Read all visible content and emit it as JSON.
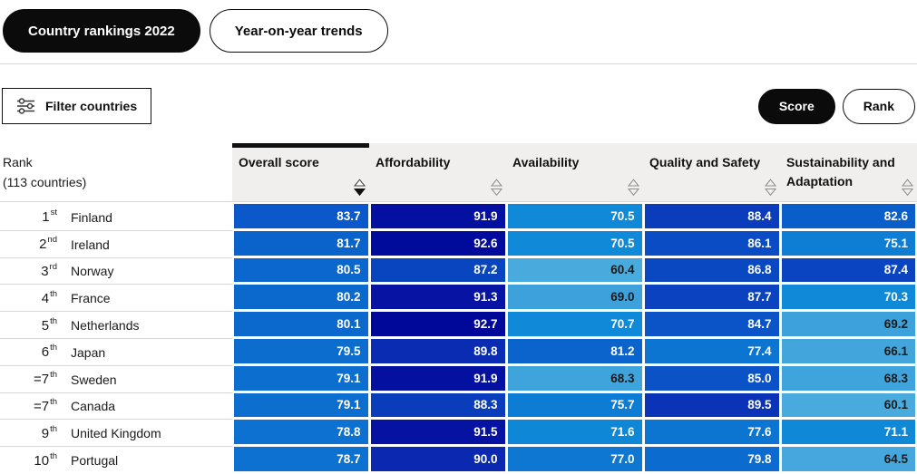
{
  "tabs": [
    {
      "label": "Country rankings 2022",
      "active": true
    },
    {
      "label": "Year-on-year trends",
      "active": false
    }
  ],
  "toolbar": {
    "filter_label": "Filter countries",
    "score_label": "Score",
    "rank_label": "Rank"
  },
  "colors": {
    "accent_black": "#0b0b0b",
    "header_bg": "#f0efed",
    "divider": "#d8d8d6",
    "sort_inactive": "#8f8f8f",
    "text_dark": "#1a1a1a"
  },
  "table": {
    "rank_header": {
      "line1": "Rank",
      "line2": "(113 countries)"
    },
    "columns": [
      {
        "label": "Overall score",
        "slug": "overall-score",
        "sort": "desc"
      },
      {
        "label": "Affordability",
        "slug": "affordability",
        "sort": "none"
      },
      {
        "label": "Availability",
        "slug": "availability",
        "sort": "none"
      },
      {
        "label": "Quality and Safety",
        "slug": "quality-and-safety",
        "sort": "none"
      },
      {
        "label": "Sustainability and Adaptation",
        "slug": "sustainability-and-adaptation",
        "sort": "none"
      }
    ],
    "rows": [
      {
        "rank": "1",
        "ordinal": "st",
        "country": "Finland",
        "cells": [
          {
            "value": "83.7",
            "bg": "#0a58c9",
            "fg": "#ffffff"
          },
          {
            "value": "91.9",
            "bg": "#0410a0",
            "fg": "#ffffff"
          },
          {
            "value": "70.5",
            "bg": "#1089d8",
            "fg": "#ffffff"
          },
          {
            "value": "88.4",
            "bg": "#0a3cbc",
            "fg": "#ffffff"
          },
          {
            "value": "82.6",
            "bg": "#0a5eca",
            "fg": "#ffffff"
          }
        ]
      },
      {
        "rank": "2",
        "ordinal": "nd",
        "country": "Ireland",
        "cells": [
          {
            "value": "81.7",
            "bg": "#0a62cb",
            "fg": "#ffffff"
          },
          {
            "value": "92.6",
            "bg": "#000a9b",
            "fg": "#ffffff"
          },
          {
            "value": "70.5",
            "bg": "#1089d8",
            "fg": "#ffffff"
          },
          {
            "value": "86.1",
            "bg": "#0a4cc4",
            "fg": "#ffffff"
          },
          {
            "value": "75.1",
            "bg": "#0d7ed4",
            "fg": "#ffffff"
          }
        ]
      },
      {
        "rank": "3",
        "ordinal": "rd",
        "country": "Norway",
        "cells": [
          {
            "value": "80.5",
            "bg": "#0b67cd",
            "fg": "#ffffff"
          },
          {
            "value": "87.2",
            "bg": "#0a45c0",
            "fg": "#ffffff"
          },
          {
            "value": "60.4",
            "bg": "#49aade",
            "fg": "#1a1a1a"
          },
          {
            "value": "86.8",
            "bg": "#0a48c2",
            "fg": "#ffffff"
          },
          {
            "value": "87.4",
            "bg": "#0a44c0",
            "fg": "#ffffff"
          }
        ]
      },
      {
        "rank": "4",
        "ordinal": "th",
        "country": "France",
        "cells": [
          {
            "value": "80.2",
            "bg": "#0b68cd",
            "fg": "#ffffff"
          },
          {
            "value": "91.3",
            "bg": "#0714a3",
            "fg": "#ffffff"
          },
          {
            "value": "69.0",
            "bg": "#3da2db",
            "fg": "#1a1a1a"
          },
          {
            "value": "87.7",
            "bg": "#0a42bf",
            "fg": "#ffffff"
          },
          {
            "value": "70.3",
            "bg": "#1089d8",
            "fg": "#ffffff"
          }
        ]
      },
      {
        "rank": "5",
        "ordinal": "th",
        "country": "Netherlands",
        "cells": [
          {
            "value": "80.1",
            "bg": "#0b68cd",
            "fg": "#ffffff"
          },
          {
            "value": "92.7",
            "bg": "#00089a",
            "fg": "#ffffff"
          },
          {
            "value": "70.7",
            "bg": "#1089d8",
            "fg": "#ffffff"
          },
          {
            "value": "84.7",
            "bg": "#0a54c7",
            "fg": "#ffffff"
          },
          {
            "value": "69.2",
            "bg": "#3da2db",
            "fg": "#1a1a1a"
          }
        ]
      },
      {
        "rank": "6",
        "ordinal": "th",
        "country": "Japan",
        "cells": [
          {
            "value": "79.5",
            "bg": "#0c6dcf",
            "fg": "#ffffff"
          },
          {
            "value": "89.8",
            "bg": "#0a2cb3",
            "fg": "#ffffff"
          },
          {
            "value": "81.2",
            "bg": "#0a64cc",
            "fg": "#ffffff"
          },
          {
            "value": "77.4",
            "bg": "#0c75d2",
            "fg": "#ffffff"
          },
          {
            "value": "66.1",
            "bg": "#42a5dc",
            "fg": "#1a1a1a"
          }
        ]
      },
      {
        "rank": "=7",
        "ordinal": "th",
        "country": "Sweden",
        "cells": [
          {
            "value": "79.1",
            "bg": "#0c6fcf",
            "fg": "#ffffff"
          },
          {
            "value": "91.9",
            "bg": "#0410a0",
            "fg": "#ffffff"
          },
          {
            "value": "68.3",
            "bg": "#3fa3dc",
            "fg": "#1a1a1a"
          },
          {
            "value": "85.0",
            "bg": "#0a52c6",
            "fg": "#ffffff"
          },
          {
            "value": "68.3",
            "bg": "#3fa3dc",
            "fg": "#1a1a1a"
          }
        ]
      },
      {
        "rank": "=7",
        "ordinal": "th",
        "country": "Canada",
        "cells": [
          {
            "value": "79.1",
            "bg": "#0c6fcf",
            "fg": "#ffffff"
          },
          {
            "value": "88.3",
            "bg": "#0a3dbc",
            "fg": "#ffffff"
          },
          {
            "value": "75.7",
            "bg": "#0d7cd4",
            "fg": "#ffffff"
          },
          {
            "value": "89.5",
            "bg": "#0a33b7",
            "fg": "#ffffff"
          },
          {
            "value": "60.1",
            "bg": "#49aade",
            "fg": "#1a1a1a"
          }
        ]
      },
      {
        "rank": "9",
        "ordinal": "th",
        "country": "United Kingdom",
        "cells": [
          {
            "value": "78.8",
            "bg": "#0c71d0",
            "fg": "#ffffff"
          },
          {
            "value": "91.5",
            "bg": "#0612a1",
            "fg": "#ffffff"
          },
          {
            "value": "71.6",
            "bg": "#0f87d7",
            "fg": "#ffffff"
          },
          {
            "value": "77.6",
            "bg": "#0c75d2",
            "fg": "#ffffff"
          },
          {
            "value": "71.1",
            "bg": "#0f88d8",
            "fg": "#ffffff"
          }
        ]
      },
      {
        "rank": "10",
        "ordinal": "th",
        "country": "Portugal",
        "cells": [
          {
            "value": "78.7",
            "bg": "#0c71d0",
            "fg": "#ffffff"
          },
          {
            "value": "90.0",
            "bg": "#0a28b0",
            "fg": "#ffffff"
          },
          {
            "value": "77.0",
            "bg": "#0d77d2",
            "fg": "#ffffff"
          },
          {
            "value": "79.8",
            "bg": "#0b6bce",
            "fg": "#ffffff"
          },
          {
            "value": "64.5",
            "bg": "#45a7dd",
            "fg": "#1a1a1a"
          }
        ]
      }
    ]
  }
}
